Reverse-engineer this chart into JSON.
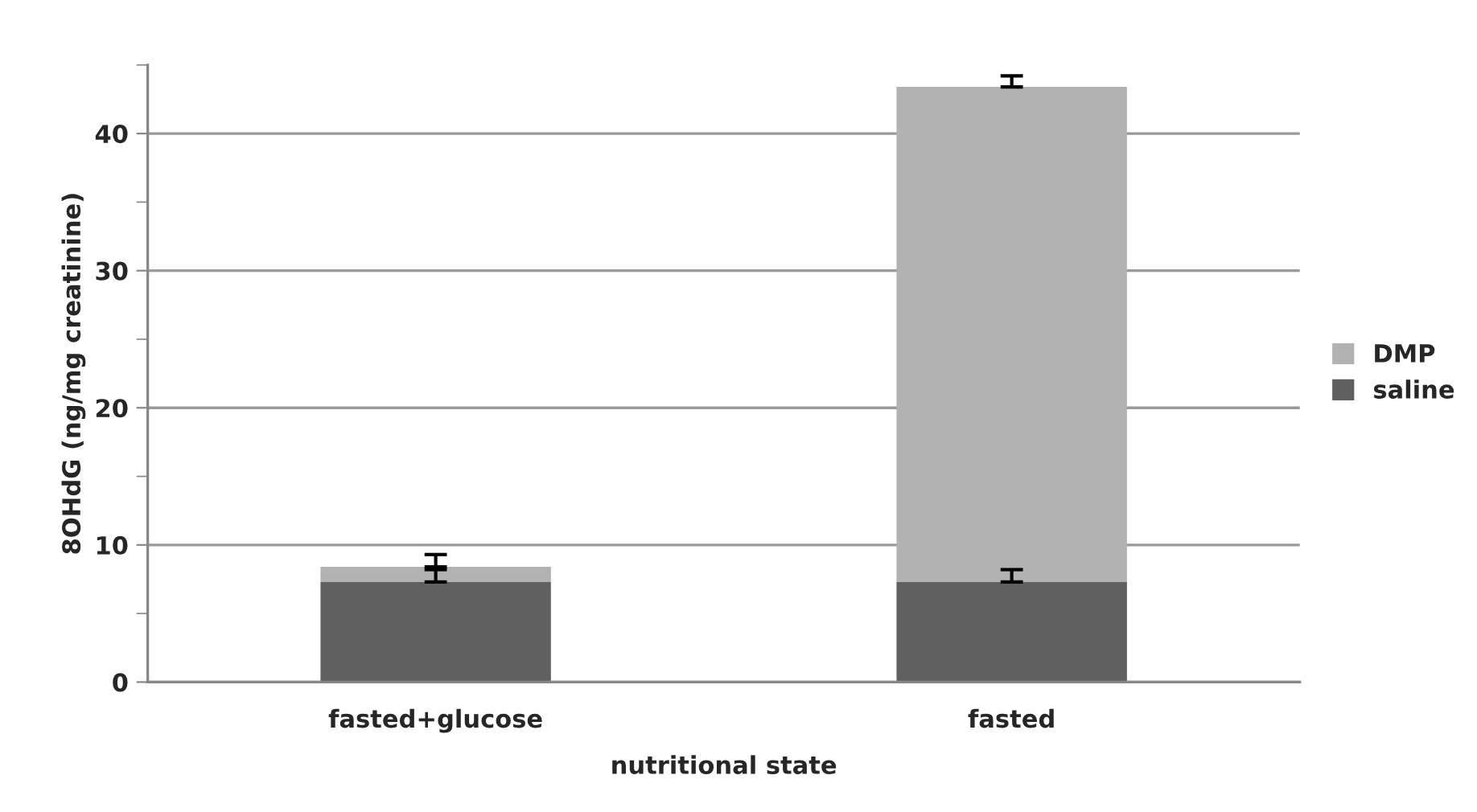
{
  "chart_data": {
    "type": "bar",
    "stacked": true,
    "xlabel": "nutritional state",
    "ylabel": "8OHdG (ng/mg creatinine)",
    "categories": [
      "fasted+glucose",
      "fasted"
    ],
    "series": [
      {
        "name": "saline",
        "color": "#606060",
        "values": [
          7.3,
          7.3
        ],
        "errors": [
          [
            7.3,
            8.2
          ],
          [
            7.3,
            8.2
          ]
        ]
      },
      {
        "name": "DMP",
        "color": "#b2b2b2",
        "values": [
          1.1,
          36.1
        ],
        "errors": [
          [
            8.4,
            9.3
          ],
          [
            43.4,
            44.2
          ]
        ]
      }
    ],
    "ylim": [
      0,
      45
    ],
    "yticks": [
      0,
      {
        "value": 5,
        "label": null
      },
      10,
      {
        "value": 15,
        "label": null
      },
      20,
      {
        "value": 25,
        "label": null
      },
      30,
      {
        "value": 35,
        "label": null
      },
      40,
      {
        "value": 45,
        "label": null
      }
    ],
    "grid": "y",
    "legend": "right"
  }
}
